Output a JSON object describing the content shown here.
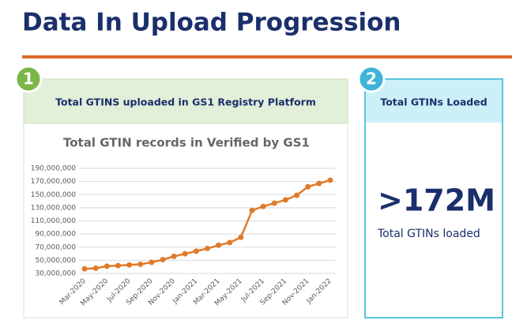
{
  "title": "Data In Upload Progression",
  "panels": [
    {
      "number": "1",
      "header": "Total GTINS uploaded in GS1 Registry Platform"
    },
    {
      "number": "2",
      "header": "Total GTINs Loaded",
      "big_value": ">172M",
      "caption": "Total GTINs loaded"
    }
  ],
  "chart_data": {
    "type": "line",
    "title": "Total GTIN records in Verified by GS1",
    "categories": [
      "Mar-2020",
      null,
      "May-2020",
      null,
      "Jul-2020",
      null,
      "Sep-2020",
      null,
      "Nov-2020",
      null,
      "Jan-2021",
      null,
      "Mar-2021",
      null,
      "May-2021",
      null,
      "Jul-2021",
      null,
      "Sep-2021",
      null,
      "Nov-2021",
      null,
      "Jan-2022"
    ],
    "series": [
      {
        "color": "#e07b2a",
        "values": [
          37000000,
          38000000,
          41000000,
          42000000,
          43000000,
          44000000,
          47000000,
          51000000,
          56000000,
          60000000,
          64000000,
          68000000,
          73000000,
          77000000,
          85000000,
          126000000,
          132000000,
          137000000,
          142000000,
          149000000,
          162000000,
          167000000,
          172000000
        ]
      }
    ],
    "ylim": [
      30000000,
      190000000
    ],
    "yticks": [
      {
        "value": 30000000,
        "label": "30,000,000"
      },
      {
        "value": 50000000,
        "label": "50,000,000"
      },
      {
        "value": 70000000,
        "label": "70,000,000"
      },
      {
        "value": 90000000,
        "label": "90,000,000"
      },
      {
        "value": 110000000,
        "label": "110,000,000"
      },
      {
        "value": 130000000,
        "label": "130,000,000"
      },
      {
        "value": 150000000,
        "label": "150,000,000"
      },
      {
        "value": 170000000,
        "label": "170,000,000"
      },
      {
        "value": 190000000,
        "label": "190,000,000"
      }
    ],
    "grid": true
  }
}
